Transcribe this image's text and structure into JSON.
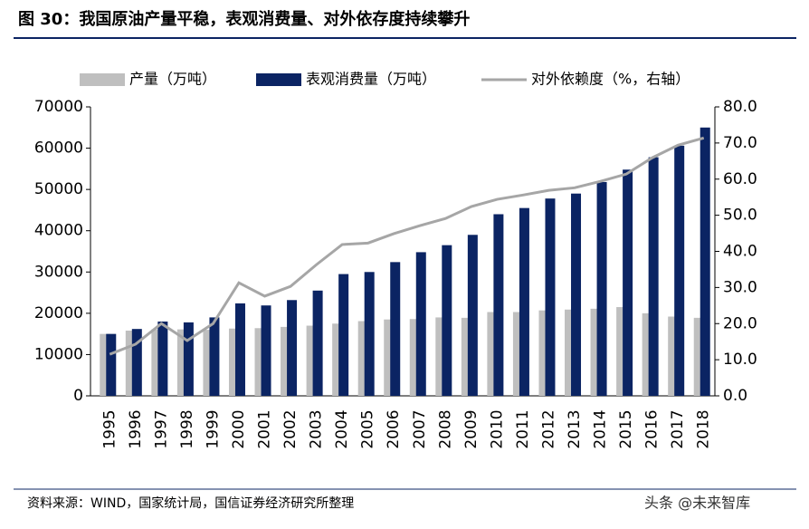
{
  "title": "图 30：我国原油产量平稳，表观消费量、对外依存度持续攀升",
  "source": "资料来源：WIND，国家统计局，国信证券经济研究所整理",
  "watermark": "头条 @未来智库",
  "chart_data": {
    "type": "bar_line",
    "categories": [
      "1995",
      "1996",
      "1997",
      "1998",
      "1999",
      "2000",
      "2001",
      "2002",
      "2003",
      "2004",
      "2005",
      "2006",
      "2007",
      "2008",
      "2009",
      "2010",
      "2011",
      "2012",
      "2013",
      "2014",
      "2015",
      "2016",
      "2017",
      "2018"
    ],
    "series": [
      {
        "name": "产量（万吨）",
        "type": "bar",
        "color": "#bfbfbf",
        "values": [
          15000,
          15800,
          16100,
          16100,
          16000,
          16300,
          16400,
          16700,
          17000,
          17500,
          18100,
          18500,
          18600,
          19000,
          18900,
          20300,
          20300,
          20700,
          20900,
          21100,
          21500,
          20000,
          19200,
          18900
        ]
      },
      {
        "name": "表观消费量（万吨）",
        "type": "bar",
        "color": "#0b2463",
        "values": [
          15000,
          16200,
          18000,
          17800,
          19000,
          22400,
          21900,
          23200,
          25500,
          29500,
          30000,
          32400,
          34800,
          36500,
          39000,
          44000,
          45500,
          47800,
          49000,
          51800,
          54800,
          57800,
          60600,
          65000
        ]
      },
      {
        "name": "对外依赖度（%，右轴）",
        "type": "line",
        "axis": "y2",
        "color": "#a6a6a6",
        "values": [
          11.5,
          14.3,
          20,
          15.3,
          20,
          31.3,
          27.6,
          30.3,
          36.3,
          41.9,
          42.3,
          44.9,
          47.1,
          49.1,
          52.4,
          54.4,
          55.6,
          56.9,
          57.6,
          59.4,
          61.4,
          65.9,
          69.4,
          71.4
        ]
      }
    ],
    "ylim": [
      0,
      70000
    ],
    "yticks": [
      0,
      10000,
      20000,
      30000,
      40000,
      50000,
      60000,
      70000
    ],
    "y2lim": [
      0,
      80
    ],
    "y2ticks": [
      {
        "value": 0,
        "label": "0.0"
      },
      {
        "value": 10,
        "label": "10.0"
      },
      {
        "value": 20,
        "label": "20.0"
      },
      {
        "value": 30,
        "label": "30.0"
      },
      {
        "value": 40,
        "label": "40.0"
      },
      {
        "value": 50,
        "label": "50.0"
      },
      {
        "value": 60,
        "label": "60.0"
      },
      {
        "value": 70,
        "label": "70.0"
      },
      {
        "value": 80,
        "label": "80.0"
      }
    ],
    "legend": "top"
  }
}
